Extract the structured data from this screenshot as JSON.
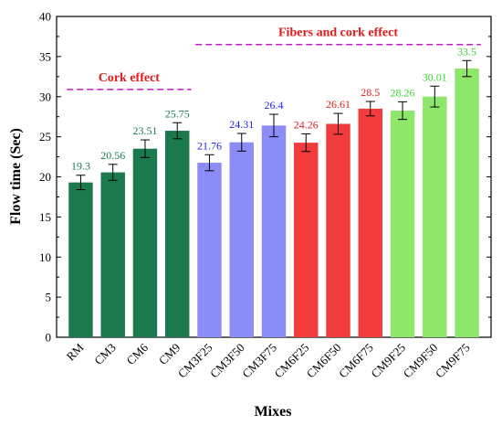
{
  "chart_data": {
    "type": "bar",
    "title": "",
    "xlabel": "Mixes",
    "ylabel": "Flow time (Sec)",
    "ylim": [
      0,
      40
    ],
    "yticks": [
      0,
      5,
      10,
      15,
      20,
      25,
      30,
      35,
      40
    ],
    "grid": false,
    "categories": [
      "RM",
      "CM3",
      "CM6",
      "CM9",
      "CM3F25",
      "CM3F50",
      "CM3F75",
      "CM6F25",
      "CM6F50",
      "CM6F75",
      "CM9F25",
      "CM9F50",
      "CM9F75"
    ],
    "values": [
      19.3,
      20.56,
      23.51,
      25.75,
      21.76,
      24.31,
      26.4,
      24.26,
      26.61,
      28.5,
      28.26,
      30.01,
      33.5
    ],
    "value_labels": [
      "19.3",
      "20.56",
      "23.51",
      "25.75",
      "21.76",
      "24.31",
      "26.4",
      "24.26",
      "26.61",
      "28.5",
      "28.26",
      "30.01",
      "33.5"
    ],
    "error": [
      0.9,
      1.0,
      1.1,
      1.0,
      1.0,
      1.1,
      1.4,
      1.1,
      1.3,
      0.9,
      1.1,
      1.3,
      1.0
    ],
    "bar_colors": [
      "#1a7a4e",
      "#1a7a4e",
      "#1a7a4e",
      "#1a7a4e",
      "#8c8cf7",
      "#8c8cf7",
      "#8c8cf7",
      "#f23c3c",
      "#f23c3c",
      "#f23c3c",
      "#8ee66a",
      "#8ee66a",
      "#8ee66a"
    ],
    "label_colors": [
      "#1a7a4e",
      "#1a7a4e",
      "#1a7a4e",
      "#1a7a4e",
      "#1f1fe0",
      "#1f1fe0",
      "#1f1fe0",
      "#e01b1b",
      "#e01b1b",
      "#e01b1b",
      "#3cd62e",
      "#3cd62e",
      "#3cd62e"
    ],
    "annotations": [
      {
        "text": "Cork effect",
        "line_y": 30.9,
        "from_category": "RM",
        "to_category": "CM9",
        "color": "#e01b1b",
        "line_color": "#c21ec2"
      },
      {
        "text": "Fibers and cork effect",
        "line_y": 36.5,
        "from_category": "CM3F25",
        "to_category": "CM9F75",
        "color": "#e01b1b",
        "line_color": "#c21ec2"
      }
    ]
  }
}
